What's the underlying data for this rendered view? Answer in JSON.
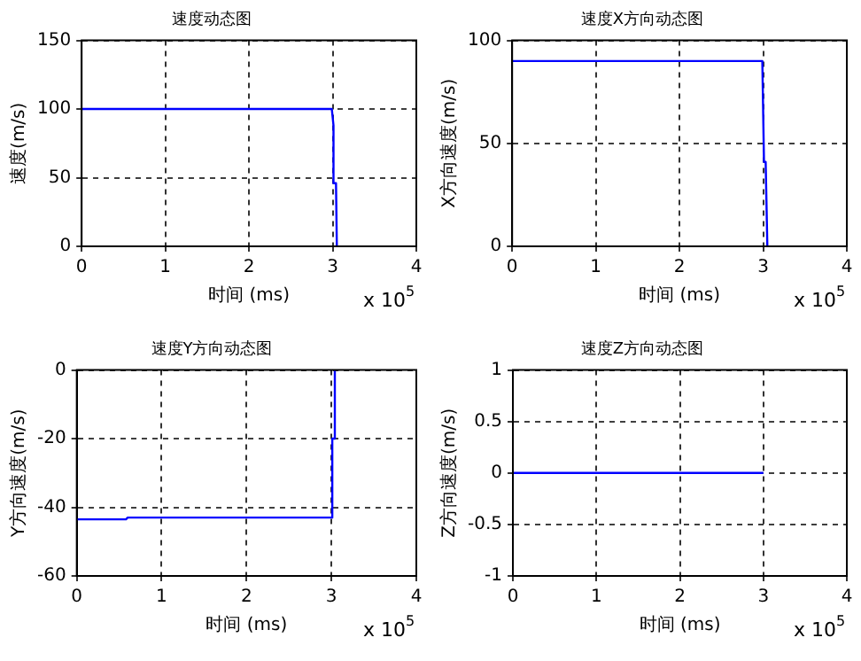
{
  "chart_data": [
    {
      "type": "line",
      "title": "速度动态图",
      "xlabel": "时间 (ms)",
      "ylabel": "速度(m/s)",
      "annotations": [
        "x 10$^{5}$"
      ],
      "xlim": [
        0,
        4
      ],
      "xticks": [
        0,
        1,
        2,
        3,
        4
      ],
      "ylim": [
        0,
        150
      ],
      "yticks": [
        0,
        50,
        100,
        150
      ],
      "grid": true,
      "marker": "none",
      "line_style": "solid",
      "series": [
        {
          "color": "#0000ff",
          "x": [
            0,
            2.99,
            3,
            3.01,
            3.01,
            3.04,
            3.05
          ],
          "values": [
            100,
            100,
            100,
            88,
            46,
            46,
            0
          ]
        }
      ]
    },
    {
      "type": "line",
      "title": "速度X方向动态图",
      "xlabel": "时间 (ms)",
      "ylabel": "X方向速度(m/s)",
      "annotations": [
        "x 10$^{5}$"
      ],
      "xlim": [
        0,
        4
      ],
      "xticks": [
        0,
        1,
        2,
        3,
        4
      ],
      "ylim": [
        0,
        100
      ],
      "yticks": [
        0,
        50,
        100
      ],
      "grid": true,
      "marker": "none",
      "line_style": "solid",
      "series": [
        {
          "color": "#0000ff",
          "x": [
            0,
            2.99,
            3,
            3.01,
            3.03,
            3.05
          ],
          "values": [
            90,
            90,
            90,
            41,
            41,
            0
          ]
        }
      ]
    },
    {
      "type": "line",
      "title": "速度Y方向动态图",
      "xlabel": "时间 (ms)",
      "ylabel": "Y方向速度(m/s)",
      "annotations": [
        "x 10$^{5}$"
      ],
      "xlim": [
        0,
        4
      ],
      "xticks": [
        0,
        1,
        2,
        3,
        4
      ],
      "ylim": [
        -60,
        0
      ],
      "yticks": [
        -60,
        -40,
        -20,
        0
      ],
      "grid": true,
      "marker": "none",
      "line_style": "solid",
      "series": [
        {
          "color": "#0000ff",
          "x": [
            0,
            0.58,
            0.6,
            3,
            3.01,
            3.02,
            3.04
          ],
          "values": [
            -43.5,
            -43.5,
            -43,
            -43,
            -20,
            -20,
            0
          ]
        }
      ]
    },
    {
      "type": "line",
      "title": "速度Z方向动态图",
      "xlabel": "时间 (ms)",
      "ylabel": "Z方向速度(m/s)",
      "annotations": [
        "x 10$^{5}$"
      ],
      "xlim": [
        0,
        4
      ],
      "xticks": [
        0,
        1,
        2,
        3,
        4
      ],
      "ylim": [
        -1,
        1
      ],
      "yticks": [
        -1,
        -0.5,
        0,
        0.5,
        1
      ],
      "grid": true,
      "marker": "none",
      "line_style": "solid",
      "series": [
        {
          "color": "#0000ff",
          "x": [
            0,
            3
          ],
          "values": [
            0,
            0
          ]
        }
      ]
    }
  ]
}
